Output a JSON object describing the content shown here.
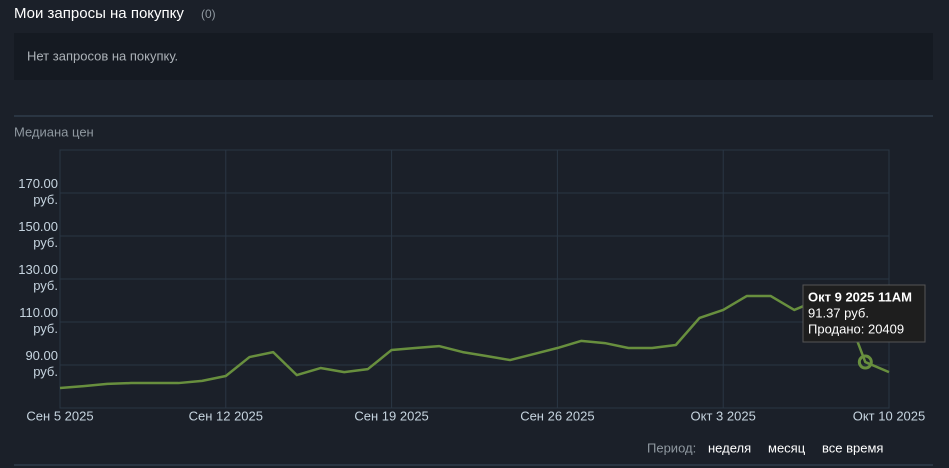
{
  "header": {
    "title": "Мои запросы на покупку",
    "count": "(0)"
  },
  "orders": {
    "empty_text": "Нет запросов на покупку."
  },
  "chart_data": {
    "type": "line",
    "title": "Медиана цен",
    "x": [
      "2025-09-05",
      "2025-09-06",
      "2025-09-07",
      "2025-09-08",
      "2025-09-09",
      "2025-09-10",
      "2025-09-11",
      "2025-09-12",
      "2025-09-13",
      "2025-09-14",
      "2025-09-15",
      "2025-09-16",
      "2025-09-17",
      "2025-09-18",
      "2025-09-19",
      "2025-09-20",
      "2025-09-21",
      "2025-09-22",
      "2025-09-23",
      "2025-09-24",
      "2025-09-25",
      "2025-09-26",
      "2025-09-27",
      "2025-09-28",
      "2025-09-29",
      "2025-09-30",
      "2025-10-01",
      "2025-10-02",
      "2025-10-03",
      "2025-10-04",
      "2025-10-05",
      "2025-10-06",
      "2025-10-07",
      "2025-10-08",
      "2025-10-09",
      "2025-10-10"
    ],
    "series": [
      {
        "name": "Медиана цен",
        "color": "#688f3e",
        "values": [
          79.3,
          80.2,
          81.2,
          81.6,
          81.6,
          81.6,
          82.6,
          84.9,
          93.7,
          96,
          85.3,
          88.6,
          86.7,
          88.1,
          97,
          97.9,
          98.8,
          96,
          94.2,
          92.3,
          95.1,
          97.9,
          101.2,
          100.2,
          97.9,
          97.9,
          99.3,
          111.9,
          115.6,
          122.1,
          122.1,
          115.6,
          120.2,
          120.2,
          91.37,
          86.7
        ]
      }
    ],
    "xlim": [
      "2025-09-05",
      "2025-10-10"
    ],
    "xticks": [
      {
        "value": "2025-09-05",
        "label": "Сен 5 2025"
      },
      {
        "value": "2025-09-12",
        "label": "Сен 12 2025"
      },
      {
        "value": "2025-09-19",
        "label": "Сен 19 2025"
      },
      {
        "value": "2025-09-26",
        "label": "Сен 26 2025"
      },
      {
        "value": "2025-10-03",
        "label": "Окт 3 2025"
      },
      {
        "value": "2025-10-10",
        "label": "Окт 10 2025"
      }
    ],
    "ylim": [
      70,
      190
    ],
    "yticks": [
      {
        "value": 90,
        "label": "90.00 руб."
      },
      {
        "value": 110,
        "label": "110.00 руб."
      },
      {
        "value": 130,
        "label": "130.00 руб."
      },
      {
        "value": 150,
        "label": "150.00 руб."
      },
      {
        "value": 170,
        "label": "170.00 руб."
      }
    ],
    "grid": true,
    "tooltip": {
      "index": 34,
      "date": "Окт 9 2025 11AM",
      "price": "91.37 руб.",
      "sold": "Продано: 20409"
    }
  },
  "period": {
    "label": "Период:",
    "options": [
      "неделя",
      "месяц",
      "все время"
    ]
  }
}
